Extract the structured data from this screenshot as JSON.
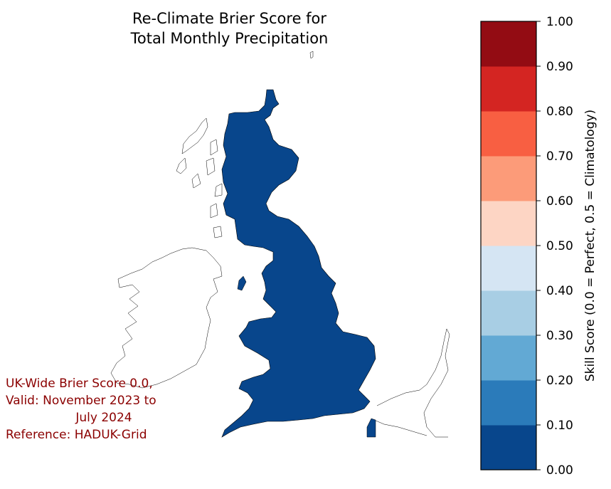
{
  "title": {
    "line1": "Re-Climate Brier Score for",
    "line2": "Total Monthly Precipitation"
  },
  "stats": {
    "line1": "UK-Wide Brier Score 0.0,",
    "line2": "Valid: November 2023 to",
    "line3": "July 2024",
    "line4": "Reference: HADUK-Grid"
  },
  "map": {
    "region_fill_color": "#08468c",
    "coastline_color": "#000000",
    "score": 0.0
  },
  "colorbar": {
    "label": "Skill Score (0.0 = Perfect, 0.5 = Climatology)",
    "ticks": [
      "0.00",
      "0.10",
      "0.20",
      "0.30",
      "0.40",
      "0.50",
      "0.60",
      "0.70",
      "0.80",
      "0.90",
      "1.00"
    ],
    "colors": [
      "#08468c",
      "#2b7bba",
      "#62a9d4",
      "#a8cee4",
      "#d5e5f3",
      "#fdd5c4",
      "#fc9b79",
      "#f85f42",
      "#d42522",
      "#930c13"
    ]
  }
}
